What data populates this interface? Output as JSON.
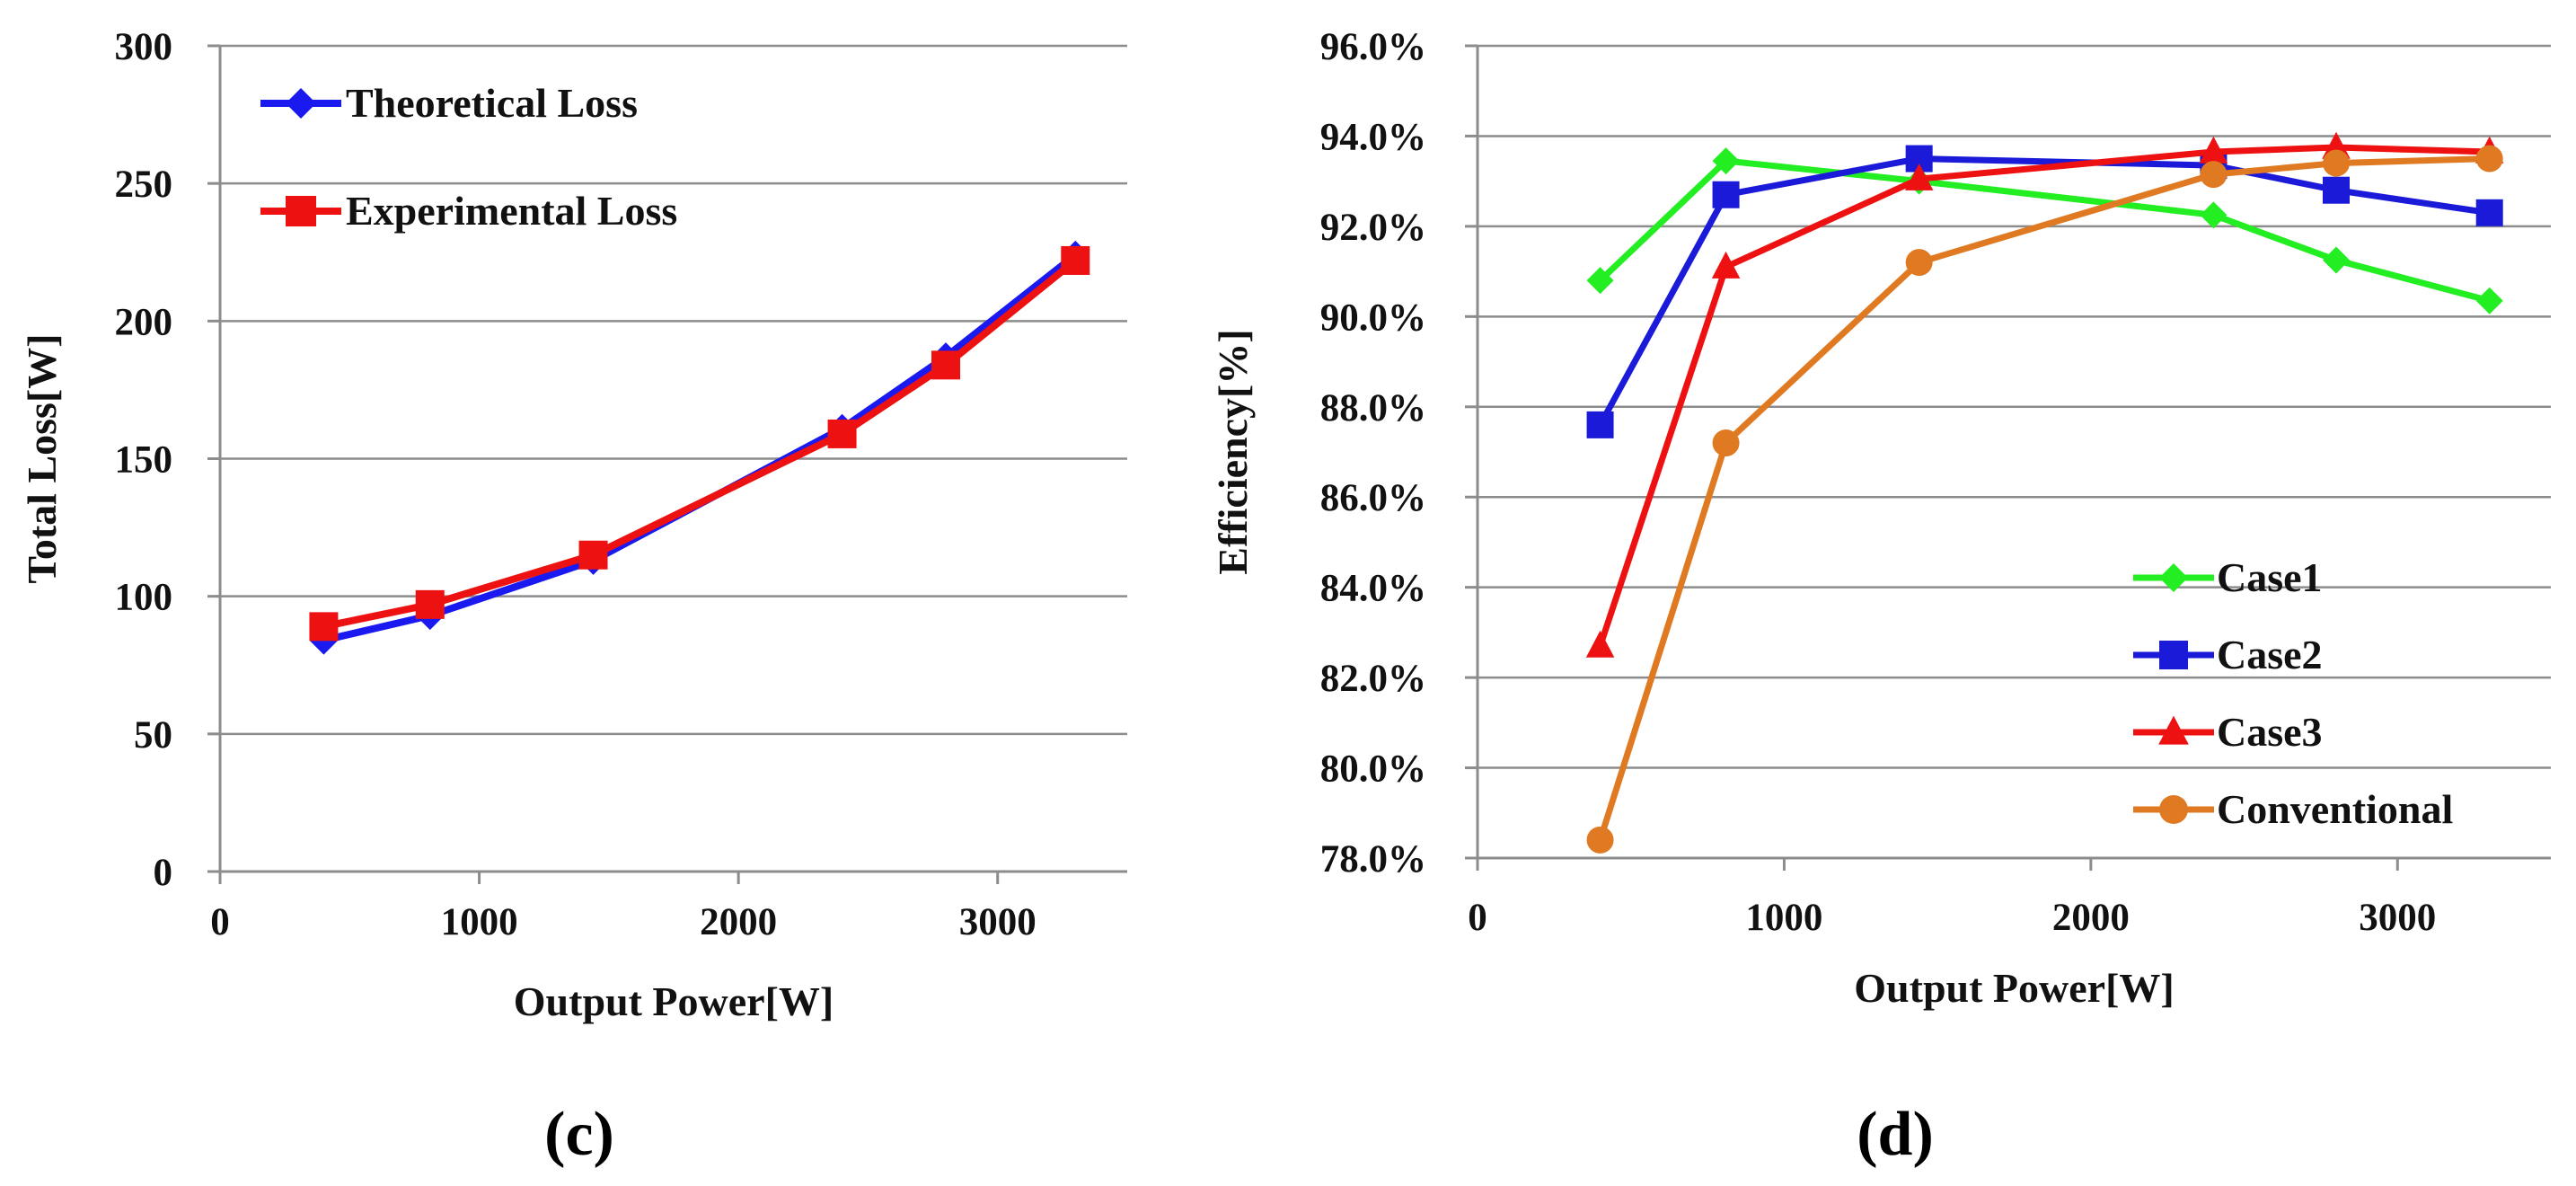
{
  "chart_data": [
    {
      "id": "chart-c",
      "type": "line",
      "caption": "(c)",
      "title": "",
      "xlabel": "Output Power[W]",
      "ylabel": "Total Loss[W]",
      "xlim": [
        0,
        3500
      ],
      "ylim": [
        0,
        300
      ],
      "xticks": [
        0,
        1000,
        2000,
        3000
      ],
      "yticks": [
        0,
        50,
        100,
        150,
        200,
        250,
        300
      ],
      "xtick_labels": [
        "0",
        "1000",
        "2000",
        "3000"
      ],
      "ytick_labels": [
        "0",
        "50",
        "100",
        "150",
        "200",
        "250",
        "300"
      ],
      "grid": "horizontal",
      "legend_position": "top-left",
      "series": [
        {
          "name": "Theoretical Loss",
          "color": "#1a1af0",
          "marker": "diamond",
          "x": [
            400,
            810,
            1440,
            2400,
            2800,
            3300
          ],
          "y": [
            84,
            93,
            113,
            161,
            187,
            224
          ]
        },
        {
          "name": "Experimental Loss",
          "color": "#ee1111",
          "marker": "square",
          "x": [
            400,
            810,
            1440,
            2400,
            2800,
            3300
          ],
          "y": [
            89,
            97,
            115,
            159,
            184,
            222
          ]
        }
      ]
    },
    {
      "id": "chart-d",
      "type": "line",
      "caption": "(d)",
      "title": "",
      "xlabel": "Output Power[W]",
      "ylabel": "Efficiency[%]",
      "xlim": [
        0,
        3500
      ],
      "ylim": [
        78.0,
        96.0
      ],
      "xticks": [
        0,
        1000,
        2000,
        3000
      ],
      "yticks": [
        78,
        80,
        82,
        84,
        86,
        88,
        90,
        92,
        94,
        96
      ],
      "xtick_labels": [
        "0",
        "1000",
        "2000",
        "3000"
      ],
      "ytick_labels": [
        "78.0%",
        "80.0%",
        "82.0%",
        "84.0%",
        "86.0%",
        "88.0%",
        "90.0%",
        "92.0%",
        "94.0%",
        "96.0%"
      ],
      "grid": "horizontal",
      "legend_position": "bottom-right",
      "series": [
        {
          "name": "Case1",
          "color": "#22ee22",
          "marker": "diamond",
          "x": [
            400,
            810,
            1440,
            2400,
            2800,
            3300
          ],
          "y": [
            90.8,
            93.45,
            93.0,
            92.25,
            91.25,
            90.35
          ]
        },
        {
          "name": "Case2",
          "color": "#1a1ad8",
          "marker": "square",
          "x": [
            400,
            810,
            1440,
            2400,
            2800,
            3300
          ],
          "y": [
            87.6,
            92.7,
            93.5,
            93.35,
            92.8,
            92.3
          ]
        },
        {
          "name": "Case3",
          "color": "#ee1111",
          "marker": "triangle",
          "x": [
            400,
            810,
            1440,
            2400,
            2800,
            3300
          ],
          "y": [
            82.7,
            91.1,
            93.05,
            93.65,
            93.75,
            93.65
          ]
        },
        {
          "name": "Conventional",
          "color": "#e07a22",
          "marker": "circle",
          "x": [
            400,
            810,
            1440,
            2400,
            2800,
            3300
          ],
          "y": [
            78.4,
            87.2,
            91.2,
            93.15,
            93.4,
            93.5
          ]
        }
      ]
    }
  ]
}
